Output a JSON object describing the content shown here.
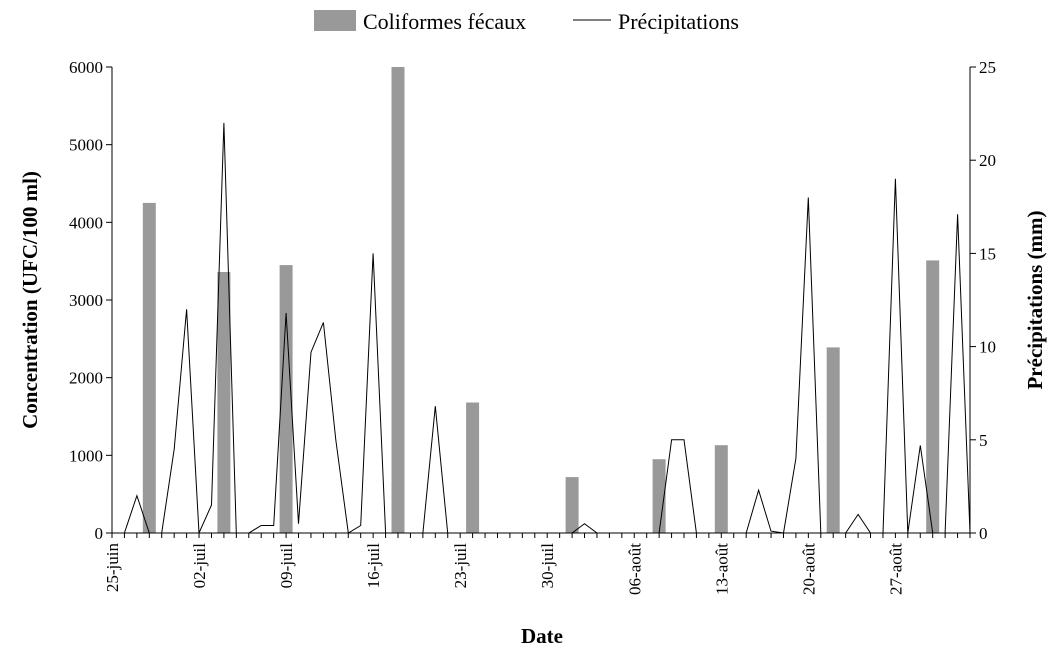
{
  "chart_data": {
    "type": "bar+line",
    "title": "",
    "legend": {
      "placement": "top-center",
      "entries": [
        "Coliformes fécaux",
        "Précipitations"
      ]
    },
    "xlabel": "Date",
    "ylabel_left": "Concentration (UFC/100 ml)",
    "ylabel_right": "Précipitations (mm)",
    "y_left_lim": [
      0,
      6000
    ],
    "y_left_ticks": [
      "0",
      "1000",
      "2000",
      "3000",
      "4000",
      "5000",
      "6000"
    ],
    "y_right_lim": [
      0,
      25
    ],
    "y_right_ticks": [
      "0",
      "5",
      "10",
      "15",
      "20",
      "25"
    ],
    "x_tick_labels": [
      {
        "day": 0,
        "label": "25-juin"
      },
      {
        "day": 7,
        "label": "02-juil"
      },
      {
        "day": 14,
        "label": "09-juil"
      },
      {
        "day": 21,
        "label": "16-juil"
      },
      {
        "day": 28,
        "label": "23-juil"
      },
      {
        "day": 35,
        "label": "30-juil"
      },
      {
        "day": 42,
        "label": "06-août"
      },
      {
        "day": 49,
        "label": "13-août"
      },
      {
        "day": 56,
        "label": "20-août"
      },
      {
        "day": 63,
        "label": "27-août"
      }
    ],
    "x_day_range": [
      0,
      69
    ],
    "grid": false,
    "series": [
      {
        "name": "Coliformes fécaux",
        "type": "bar",
        "color": "#999999",
        "axis": "left",
        "points": [
          {
            "day": 3,
            "value": 4250
          },
          {
            "day": 9,
            "value": 3360
          },
          {
            "day": 14,
            "value": 3450
          },
          {
            "day": 23,
            "value": 6000
          },
          {
            "day": 29,
            "value": 1680
          },
          {
            "day": 37,
            "value": 720
          },
          {
            "day": 44,
            "value": 950
          },
          {
            "day": 49,
            "value": 1130
          },
          {
            "day": 58,
            "value": 2390
          },
          {
            "day": 66,
            "value": 3510
          }
        ]
      },
      {
        "name": "Précipitations",
        "type": "line",
        "color": "#000000",
        "axis": "right",
        "points": [
          {
            "day": 1,
            "value": 0
          },
          {
            "day": 2,
            "value": 2
          },
          {
            "day": 3,
            "value": 0
          },
          {
            "day": 4,
            "value": 0
          },
          {
            "day": 5,
            "value": 4.5
          },
          {
            "day": 6,
            "value": 12
          },
          {
            "day": 7,
            "value": 0
          },
          {
            "day": 8,
            "value": 1.5
          },
          {
            "day": 9,
            "value": 22
          },
          {
            "day": 10,
            "value": 0
          },
          {
            "day": 11,
            "value": 0
          },
          {
            "day": 12,
            "value": 0.4
          },
          {
            "day": 13,
            "value": 0.4
          },
          {
            "day": 14,
            "value": 11.8
          },
          {
            "day": 15,
            "value": 0.5
          },
          {
            "day": 16,
            "value": 9.7
          },
          {
            "day": 17,
            "value": 11.3
          },
          {
            "day": 18,
            "value": 5
          },
          {
            "day": 19,
            "value": 0
          },
          {
            "day": 20,
            "value": 0.4
          },
          {
            "day": 21,
            "value": 15
          },
          {
            "day": 22,
            "value": 0
          },
          {
            "day": 23,
            "value": 0
          },
          {
            "day": 24,
            "value": 0
          },
          {
            "day": 25,
            "value": 0
          },
          {
            "day": 26,
            "value": 6.8
          },
          {
            "day": 27,
            "value": 0
          },
          {
            "day": 28,
            "value": 0
          },
          {
            "day": 29,
            "value": 0
          },
          {
            "day": 30,
            "value": 0
          },
          {
            "day": 31,
            "value": 0
          },
          {
            "day": 32,
            "value": 0
          },
          {
            "day": 33,
            "value": 0
          },
          {
            "day": 34,
            "value": 0
          },
          {
            "day": 35,
            "value": 0
          },
          {
            "day": 36,
            "value": 0
          },
          {
            "day": 37,
            "value": 0
          },
          {
            "day": 38,
            "value": 0.5
          },
          {
            "day": 39,
            "value": 0
          },
          {
            "day": 40,
            "value": 0
          },
          {
            "day": 41,
            "value": 0
          },
          {
            "day": 42,
            "value": 0
          },
          {
            "day": 43,
            "value": 0
          },
          {
            "day": 44,
            "value": 0
          },
          {
            "day": 45,
            "value": 5
          },
          {
            "day": 46,
            "value": 5
          },
          {
            "day": 47,
            "value": 0
          },
          {
            "day": 48,
            "value": 0
          },
          {
            "day": 49,
            "value": 0
          },
          {
            "day": 50,
            "value": 0
          },
          {
            "day": 51,
            "value": 0
          },
          {
            "day": 52,
            "value": 2.3
          },
          {
            "day": 53,
            "value": 0.1
          },
          {
            "day": 54,
            "value": 0
          },
          {
            "day": 55,
            "value": 4
          },
          {
            "day": 56,
            "value": 18
          },
          {
            "day": 57,
            "value": 0
          },
          {
            "day": 58,
            "value": 0
          },
          {
            "day": 59,
            "value": 0
          },
          {
            "day": 60,
            "value": 1
          },
          {
            "day": 61,
            "value": 0
          },
          {
            "day": 62,
            "value": 0
          },
          {
            "day": 63,
            "value": 19
          },
          {
            "day": 64,
            "value": 0
          },
          {
            "day": 65,
            "value": 4.7
          },
          {
            "day": 66,
            "value": 0
          },
          {
            "day": 67,
            "value": 0
          },
          {
            "day": 68,
            "value": 17.1
          },
          {
            "day": 69,
            "value": 0
          }
        ]
      }
    ]
  }
}
